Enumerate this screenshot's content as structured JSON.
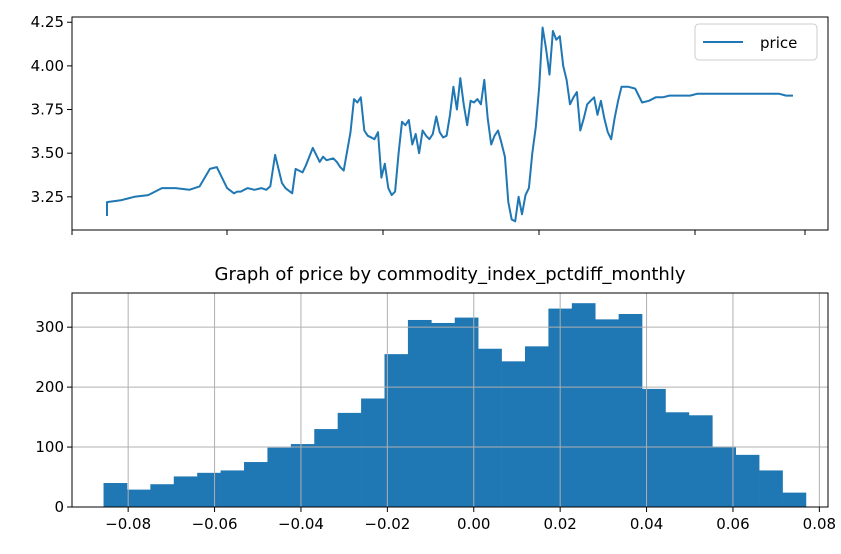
{
  "chart_data": [
    {
      "type": "line",
      "title": "",
      "xlabel": "",
      "ylabel": "",
      "ylim": [
        3.06,
        4.28
      ],
      "xlim": [
        0,
        1
      ],
      "yticks": [
        3.25,
        3.5,
        3.75,
        4.0,
        4.25
      ],
      "ytick_labels": [
        "3.25",
        "3.50",
        "3.75",
        "4.00",
        "4.25"
      ],
      "xticks": [
        0.0,
        0.146,
        0.292,
        0.438,
        0.584,
        0.73,
        0.876,
        1.0
      ],
      "xtick_labels": [],
      "grid": false,
      "legend": "top-right",
      "color": "#1f77b4",
      "series": [
        {
          "name": "price",
          "x": [
            0.0,
            0.0,
            0.02,
            0.04,
            0.06,
            0.08,
            0.1,
            0.12,
            0.135,
            0.15,
            0.16,
            0.175,
            0.185,
            0.19,
            0.195,
            0.2,
            0.205,
            0.215,
            0.225,
            0.232,
            0.238,
            0.245,
            0.255,
            0.26,
            0.27,
            0.275,
            0.285,
            0.29,
            0.3,
            0.31,
            0.315,
            0.32,
            0.33,
            0.335,
            0.34,
            0.345,
            0.355,
            0.36,
            0.365,
            0.37,
            0.375,
            0.38,
            0.39,
            0.395,
            0.4,
            0.405,
            0.41,
            0.415,
            0.42,
            0.425,
            0.43,
            0.435,
            0.44,
            0.445,
            0.45,
            0.455,
            0.46,
            0.465,
            0.47,
            0.475,
            0.48,
            0.485,
            0.49,
            0.495,
            0.5,
            0.505,
            0.51,
            0.515,
            0.52,
            0.525,
            0.53,
            0.535,
            0.54,
            0.545,
            0.55,
            0.555,
            0.56,
            0.565,
            0.57,
            0.575,
            0.58,
            0.585,
            0.59,
            0.595,
            0.6,
            0.605,
            0.61,
            0.615,
            0.62,
            0.625,
            0.63,
            0.635,
            0.64,
            0.645,
            0.65,
            0.655,
            0.66,
            0.665,
            0.67,
            0.675,
            0.68,
            0.685,
            0.69,
            0.695,
            0.7,
            0.705,
            0.71,
            0.715,
            0.72,
            0.725,
            0.73,
            0.735,
            0.74,
            0.745,
            0.75,
            0.76,
            0.77,
            0.78,
            0.79,
            0.8,
            0.81,
            0.82,
            0.83,
            0.84,
            0.85,
            0.86,
            0.87,
            0.88,
            0.89,
            0.9,
            0.91,
            0.92,
            0.93,
            0.94,
            0.95,
            0.96,
            0.97,
            0.98,
            0.99,
            1.0
          ],
          "values": [
            3.14,
            3.22,
            3.23,
            3.25,
            3.26,
            3.3,
            3.3,
            3.29,
            3.31,
            3.41,
            3.42,
            3.3,
            3.27,
            3.28,
            3.28,
            3.29,
            3.3,
            3.29,
            3.3,
            3.29,
            3.31,
            3.49,
            3.33,
            3.3,
            3.27,
            3.41,
            3.39,
            3.43,
            3.53,
            3.45,
            3.48,
            3.46,
            3.47,
            3.45,
            3.42,
            3.4,
            3.62,
            3.81,
            3.79,
            3.82,
            3.63,
            3.6,
            3.58,
            3.62,
            3.36,
            3.44,
            3.3,
            3.26,
            3.28,
            3.5,
            3.68,
            3.66,
            3.69,
            3.55,
            3.61,
            3.5,
            3.63,
            3.6,
            3.58,
            3.61,
            3.71,
            3.62,
            3.59,
            3.6,
            3.72,
            3.88,
            3.75,
            3.93,
            3.78,
            3.66,
            3.8,
            3.79,
            3.81,
            3.78,
            3.92,
            3.7,
            3.55,
            3.6,
            3.63,
            3.56,
            3.48,
            3.22,
            3.12,
            3.11,
            3.25,
            3.15,
            3.26,
            3.3,
            3.5,
            3.65,
            3.88,
            4.22,
            4.1,
            3.95,
            4.2,
            4.15,
            4.17,
            4.0,
            3.92,
            3.78,
            3.82,
            3.85,
            3.63,
            3.7,
            3.78,
            3.8,
            3.82,
            3.72,
            3.8,
            3.7,
            3.62,
            3.58,
            3.7,
            3.8,
            3.88,
            3.88,
            3.87,
            3.79,
            3.8,
            3.82,
            3.82,
            3.83,
            3.83,
            3.83,
            3.83,
            3.84,
            3.84,
            3.84,
            3.84,
            3.84,
            3.84,
            3.84,
            3.84,
            3.84,
            3.84,
            3.84,
            3.84,
            3.84,
            3.83,
            3.83
          ],
          "label": "price"
        }
      ]
    },
    {
      "type": "bar",
      "subtype": "histogram",
      "title": "Graph of price by commodity_index_pctdiff_monthly",
      "xlabel": "",
      "ylabel": "",
      "xlim": [
        -0.093,
        0.082
      ],
      "ylim": [
        0,
        357
      ],
      "xticks": [
        -0.08,
        -0.06,
        -0.04,
        -0.02,
        0.0,
        0.02,
        0.04,
        0.06,
        0.08
      ],
      "xtick_labels": [
        "−0.08",
        "−0.06",
        "−0.04",
        "−0.02",
        "0.00",
        "0.02",
        "0.04",
        "0.06",
        "0.08"
      ],
      "yticks": [
        0,
        100,
        200,
        300
      ],
      "ytick_labels": [
        "0",
        "100",
        "200",
        "300"
      ],
      "grid": true,
      "color": "#1f77b4",
      "bin_start": -0.0857,
      "bin_width": 0.00542,
      "values": [
        40,
        29,
        38,
        51,
        57,
        61,
        75,
        99,
        105,
        130,
        157,
        181,
        255,
        312,
        307,
        316,
        264,
        243,
        268,
        331,
        340,
        313,
        322,
        197,
        158,
        153,
        101,
        87,
        61,
        24
      ]
    }
  ]
}
